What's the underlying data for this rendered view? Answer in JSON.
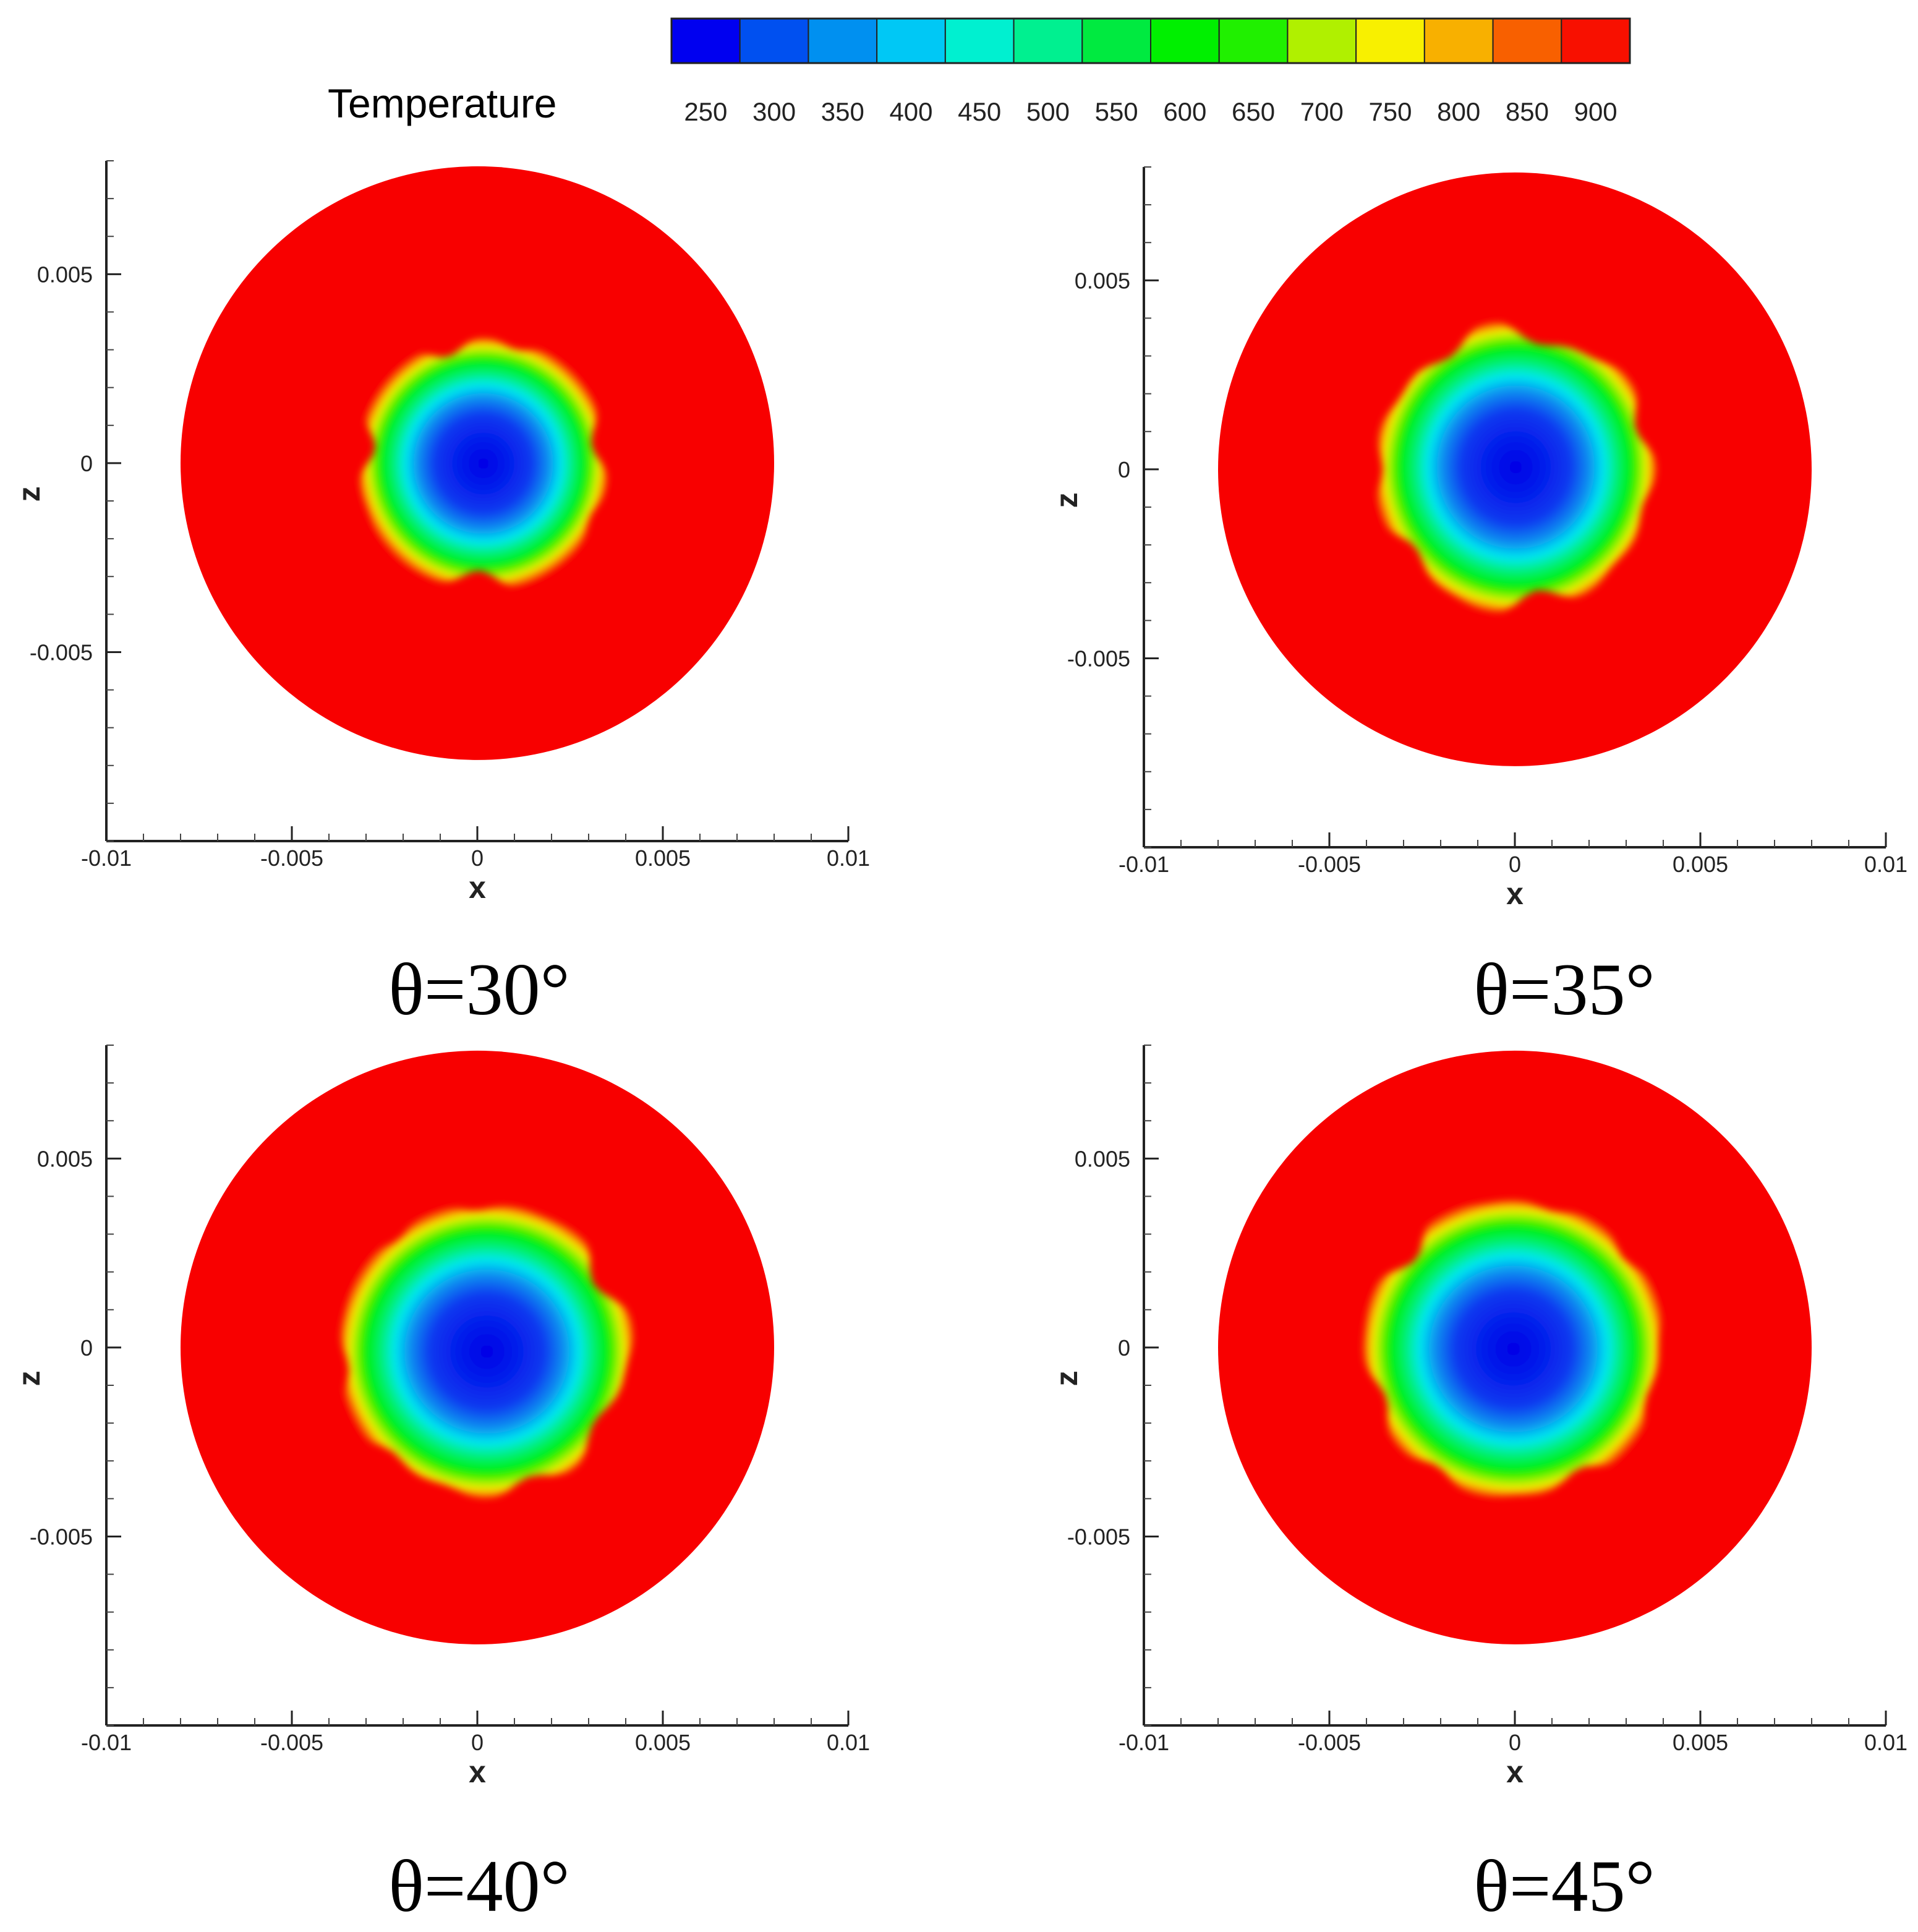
{
  "colorbar": {
    "title": "Temperature",
    "levels": [
      250,
      300,
      350,
      400,
      450,
      500,
      550,
      600,
      650,
      700,
      750,
      800,
      850,
      900
    ],
    "level_labels": [
      "250",
      "300",
      "350",
      "400",
      "450",
      "500",
      "550",
      "600",
      "650",
      "700",
      "750",
      "800",
      "850",
      "900"
    ],
    "colors": [
      "#0000f0",
      "#0050f0",
      "#0090f0",
      "#00c8f5",
      "#00f0d0",
      "#00f090",
      "#00ea40",
      "#00f000",
      "#20f000",
      "#b0f000",
      "#f8f000",
      "#f8b000",
      "#f86000",
      "#f81000"
    ]
  },
  "chart_data": [
    {
      "type": "heatmap",
      "caption": "θ=30°",
      "xlabel": "x",
      "ylabel": "z",
      "xlim": [
        -0.01,
        0.01
      ],
      "ylim": [
        -0.01,
        0.008
      ],
      "xticks": [
        -0.01,
        -0.005,
        0,
        0.005,
        0.01
      ],
      "xtick_labels": [
        "-0.01",
        "-0.005",
        "0",
        "0.005",
        "0.01"
      ],
      "yticks": [
        -0.005,
        0,
        0.005
      ],
      "ytick_labels": [
        "-0.005",
        "0",
        "0.005"
      ],
      "domain_radius": 0.008,
      "domain_temperature": 900,
      "cold_core": {
        "center": [
          0.0001,
          0.0
        ],
        "radius": 0.0035,
        "min_temperature": 250,
        "shape": "square-ish"
      }
    },
    {
      "type": "heatmap",
      "caption": "θ=35°",
      "xlabel": "x",
      "ylabel": "z",
      "xlim": [
        -0.01,
        0.01
      ],
      "ylim": [
        -0.01,
        0.008
      ],
      "xticks": [
        -0.01,
        -0.005,
        0,
        0.005,
        0.01
      ],
      "xtick_labels": [
        "-0.01",
        "-0.005",
        "0",
        "0.005",
        "0.01"
      ],
      "yticks": [
        -0.005,
        0,
        0.005
      ],
      "ytick_labels": [
        "-0.005",
        "0",
        "0.005"
      ],
      "domain_radius": 0.008,
      "domain_temperature": 900,
      "cold_core": {
        "center": [
          0.0,
          0.0
        ],
        "radius": 0.0037,
        "min_temperature": 250,
        "shape": "round"
      }
    },
    {
      "type": "heatmap",
      "caption": "θ=40°",
      "xlabel": "x",
      "ylabel": "z",
      "xlim": [
        -0.01,
        0.01
      ],
      "ylim": [
        -0.01,
        0.008
      ],
      "xticks": [
        -0.01,
        -0.005,
        0,
        0.005,
        0.01
      ],
      "xtick_labels": [
        "-0.01",
        "-0.005",
        "0",
        "0.005",
        "0.01"
      ],
      "yticks": [
        -0.005,
        0,
        0.005
      ],
      "ytick_labels": [
        "-0.005",
        "0",
        "0.005"
      ],
      "domain_radius": 0.008,
      "domain_temperature": 900,
      "cold_core": {
        "center": [
          0.0001,
          0.0
        ],
        "radius": 0.0039,
        "min_temperature": 250,
        "shape": "round"
      }
    },
    {
      "type": "heatmap",
      "caption": "θ=45°",
      "xlabel": "x",
      "ylabel": "z",
      "xlim": [
        -0.01,
        0.01
      ],
      "ylim": [
        -0.01,
        0.008
      ],
      "xticks": [
        -0.01,
        -0.005,
        0,
        0.005,
        0.01
      ],
      "xtick_labels": [
        "-0.01",
        "-0.005",
        "0",
        "0.005",
        "0.01"
      ],
      "yticks": [
        -0.005,
        0,
        0.005
      ],
      "ytick_labels": [
        "-0.005",
        "0",
        "0.005"
      ],
      "domain_radius": 0.008,
      "domain_temperature": 900,
      "cold_core": {
        "center": [
          0.0,
          0.0
        ],
        "radius": 0.004,
        "min_temperature": 250,
        "shape": "round"
      }
    }
  ]
}
